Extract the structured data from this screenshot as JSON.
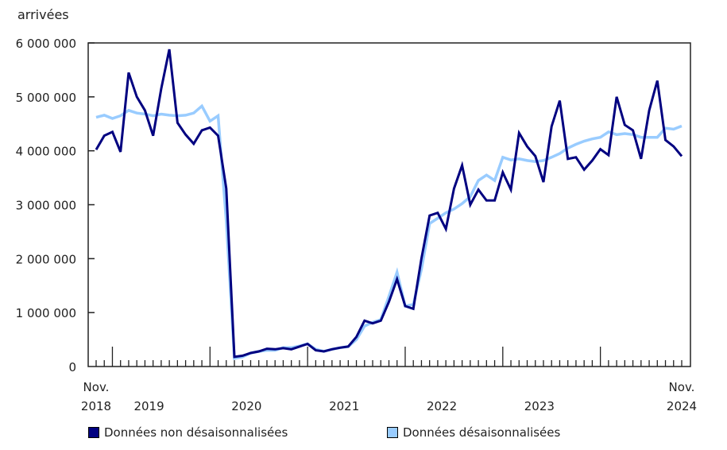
{
  "chart_data": {
    "type": "line",
    "title": "",
    "ylabel": "arrivées",
    "xlabel": "",
    "ylim": [
      0,
      6000000
    ],
    "yticks": [
      0,
      1000000,
      2000000,
      3000000,
      4000000,
      5000000,
      6000000
    ],
    "ytick_labels": [
      "0",
      "1 000 000",
      "2 000 000",
      "3 000 000",
      "4 000 000",
      "5 000 000",
      "6 000 000"
    ],
    "x_start": "Nov. 2018",
    "x_end": "Nov. 2024",
    "x_labels": [
      {
        "line1": "Nov.",
        "line2": "2018",
        "month_index": 0
      },
      {
        "line1": "",
        "line2": "2019",
        "month_index": 6.5
      },
      {
        "line1": "",
        "line2": "2020",
        "month_index": 18.5
      },
      {
        "line1": "",
        "line2": "2021",
        "month_index": 30.5
      },
      {
        "line1": "",
        "line2": "2022",
        "month_index": 42.5
      },
      {
        "line1": "",
        "line2": "2023",
        "month_index": 54.5
      },
      {
        "line1": "Nov.",
        "line2": "2024",
        "month_index": 72
      }
    ],
    "year_boundaries": [
      2,
      14,
      26,
      38,
      50,
      62
    ],
    "grid": false,
    "legend_position": "bottom",
    "series": [
      {
        "name": "Données non désaisonnalisées",
        "color": "#000080",
        "values": [
          4020000,
          4280000,
          4350000,
          3980000,
          5450000,
          5000000,
          4750000,
          4280000,
          5150000,
          5880000,
          4520000,
          4300000,
          4130000,
          4380000,
          4430000,
          4280000,
          3300000,
          180000,
          200000,
          250000,
          280000,
          330000,
          320000,
          340000,
          320000,
          370000,
          420000,
          300000,
          280000,
          320000,
          350000,
          370000,
          550000,
          850000,
          800000,
          850000,
          1200000,
          1620000,
          1120000,
          1070000,
          2000000,
          2800000,
          2850000,
          2550000,
          3300000,
          3730000,
          3000000,
          3280000,
          3080000,
          3080000,
          3600000,
          3280000,
          4330000,
          4080000,
          3900000,
          3420000,
          4450000,
          4930000,
          3850000,
          3880000,
          3650000,
          3820000,
          4030000,
          3920000,
          5000000,
          4480000,
          4380000,
          3850000,
          4750000,
          5300000,
          4200000,
          4080000,
          3900000
        ]
      },
      {
        "name": "Données désaisonnalisées",
        "color": "#99ccff",
        "values": [
          4620000,
          4660000,
          4600000,
          4650000,
          4750000,
          4700000,
          4680000,
          4650000,
          4680000,
          4660000,
          4650000,
          4660000,
          4700000,
          4830000,
          4550000,
          4650000,
          2700000,
          150000,
          180000,
          250000,
          280000,
          300000,
          300000,
          350000,
          350000,
          380000,
          420000,
          320000,
          280000,
          320000,
          350000,
          370000,
          500000,
          750000,
          820000,
          870000,
          1300000,
          1750000,
          1120000,
          1150000,
          1800000,
          2650000,
          2750000,
          2850000,
          2920000,
          3020000,
          3150000,
          3450000,
          3550000,
          3450000,
          3880000,
          3830000,
          3850000,
          3820000,
          3800000,
          3820000,
          3880000,
          3950000,
          4050000,
          4120000,
          4180000,
          4220000,
          4250000,
          4350000,
          4300000,
          4320000,
          4300000,
          4250000,
          4250000,
          4250000,
          4420000,
          4400000,
          4460000
        ]
      }
    ]
  },
  "legend": {
    "items": [
      {
        "label": "Données non désaisonnalisées",
        "color": "#000080"
      },
      {
        "label": "Données désaisonnalisées",
        "color": "#99ccff"
      }
    ]
  }
}
